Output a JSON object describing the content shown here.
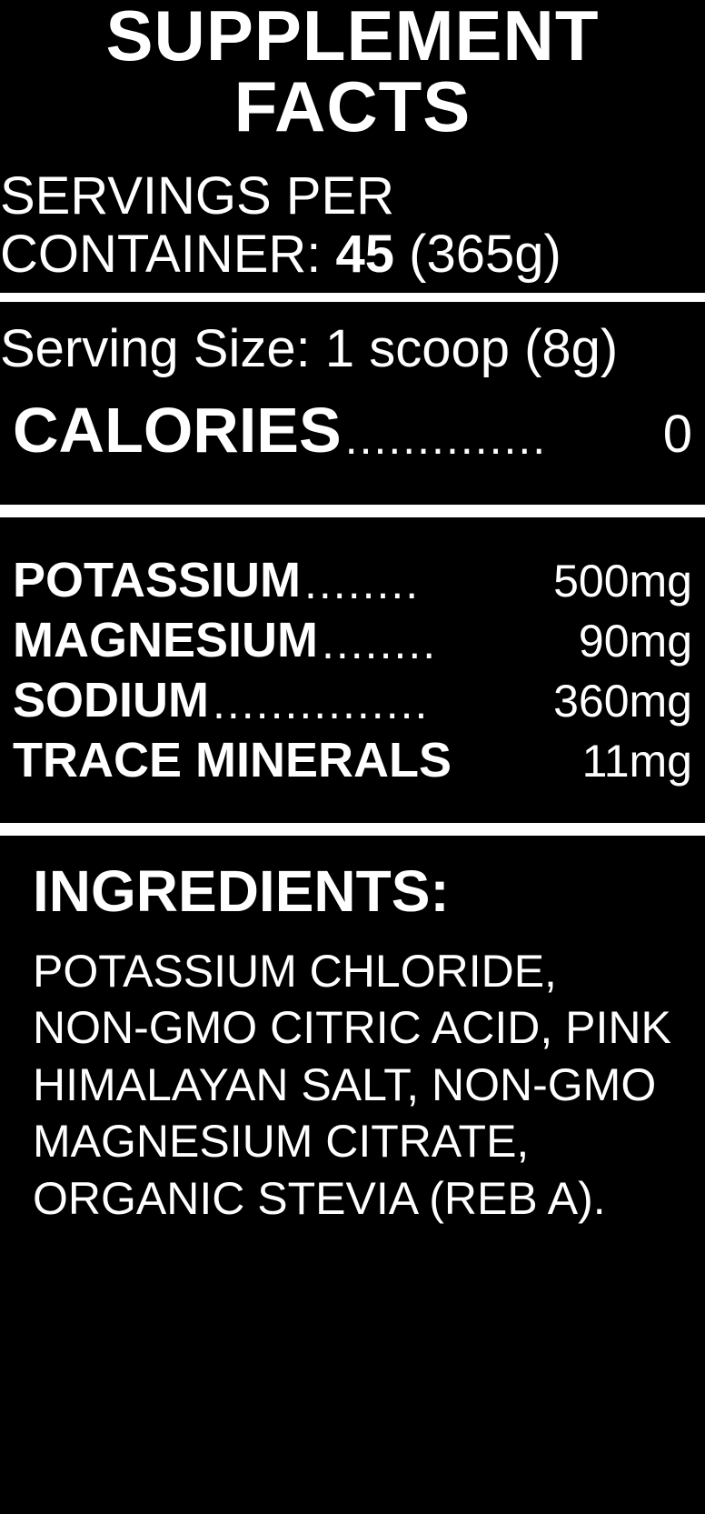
{
  "title": "SUPPLEMENT FACTS",
  "servings": {
    "label_line1": "SERVINGS PER",
    "label_line2_prefix": "CONTAINER: ",
    "count": "45",
    "weight": " (365g)"
  },
  "serving_size": "Serving Size: 1 scoop (8g)",
  "calories": {
    "label": "CALORIES",
    "dots": "..............",
    "value": "0"
  },
  "nutrients": [
    {
      "label": "POTASSIUM",
      "dots": "........",
      "value": "500mg"
    },
    {
      "label": "MAGNESIUM",
      "dots": "........",
      "value": "90mg"
    },
    {
      "label": "SODIUM",
      "dots": "...............",
      "value": "360mg"
    },
    {
      "label": "TRACE MINERALS",
      "dots": " ",
      "value": "11mg"
    }
  ],
  "ingredients": {
    "heading": "INGREDIENTS:",
    "text": "POTASSIUM CHLORIDE, NON-GMO CITRIC ACID, PINK HIMALAYAN SALT, NON-GMO MAGNESIUM CITRATE, ORGANIC STEVIA (REB A)."
  },
  "colors": {
    "bg": "#000000",
    "fg": "#ffffff"
  }
}
